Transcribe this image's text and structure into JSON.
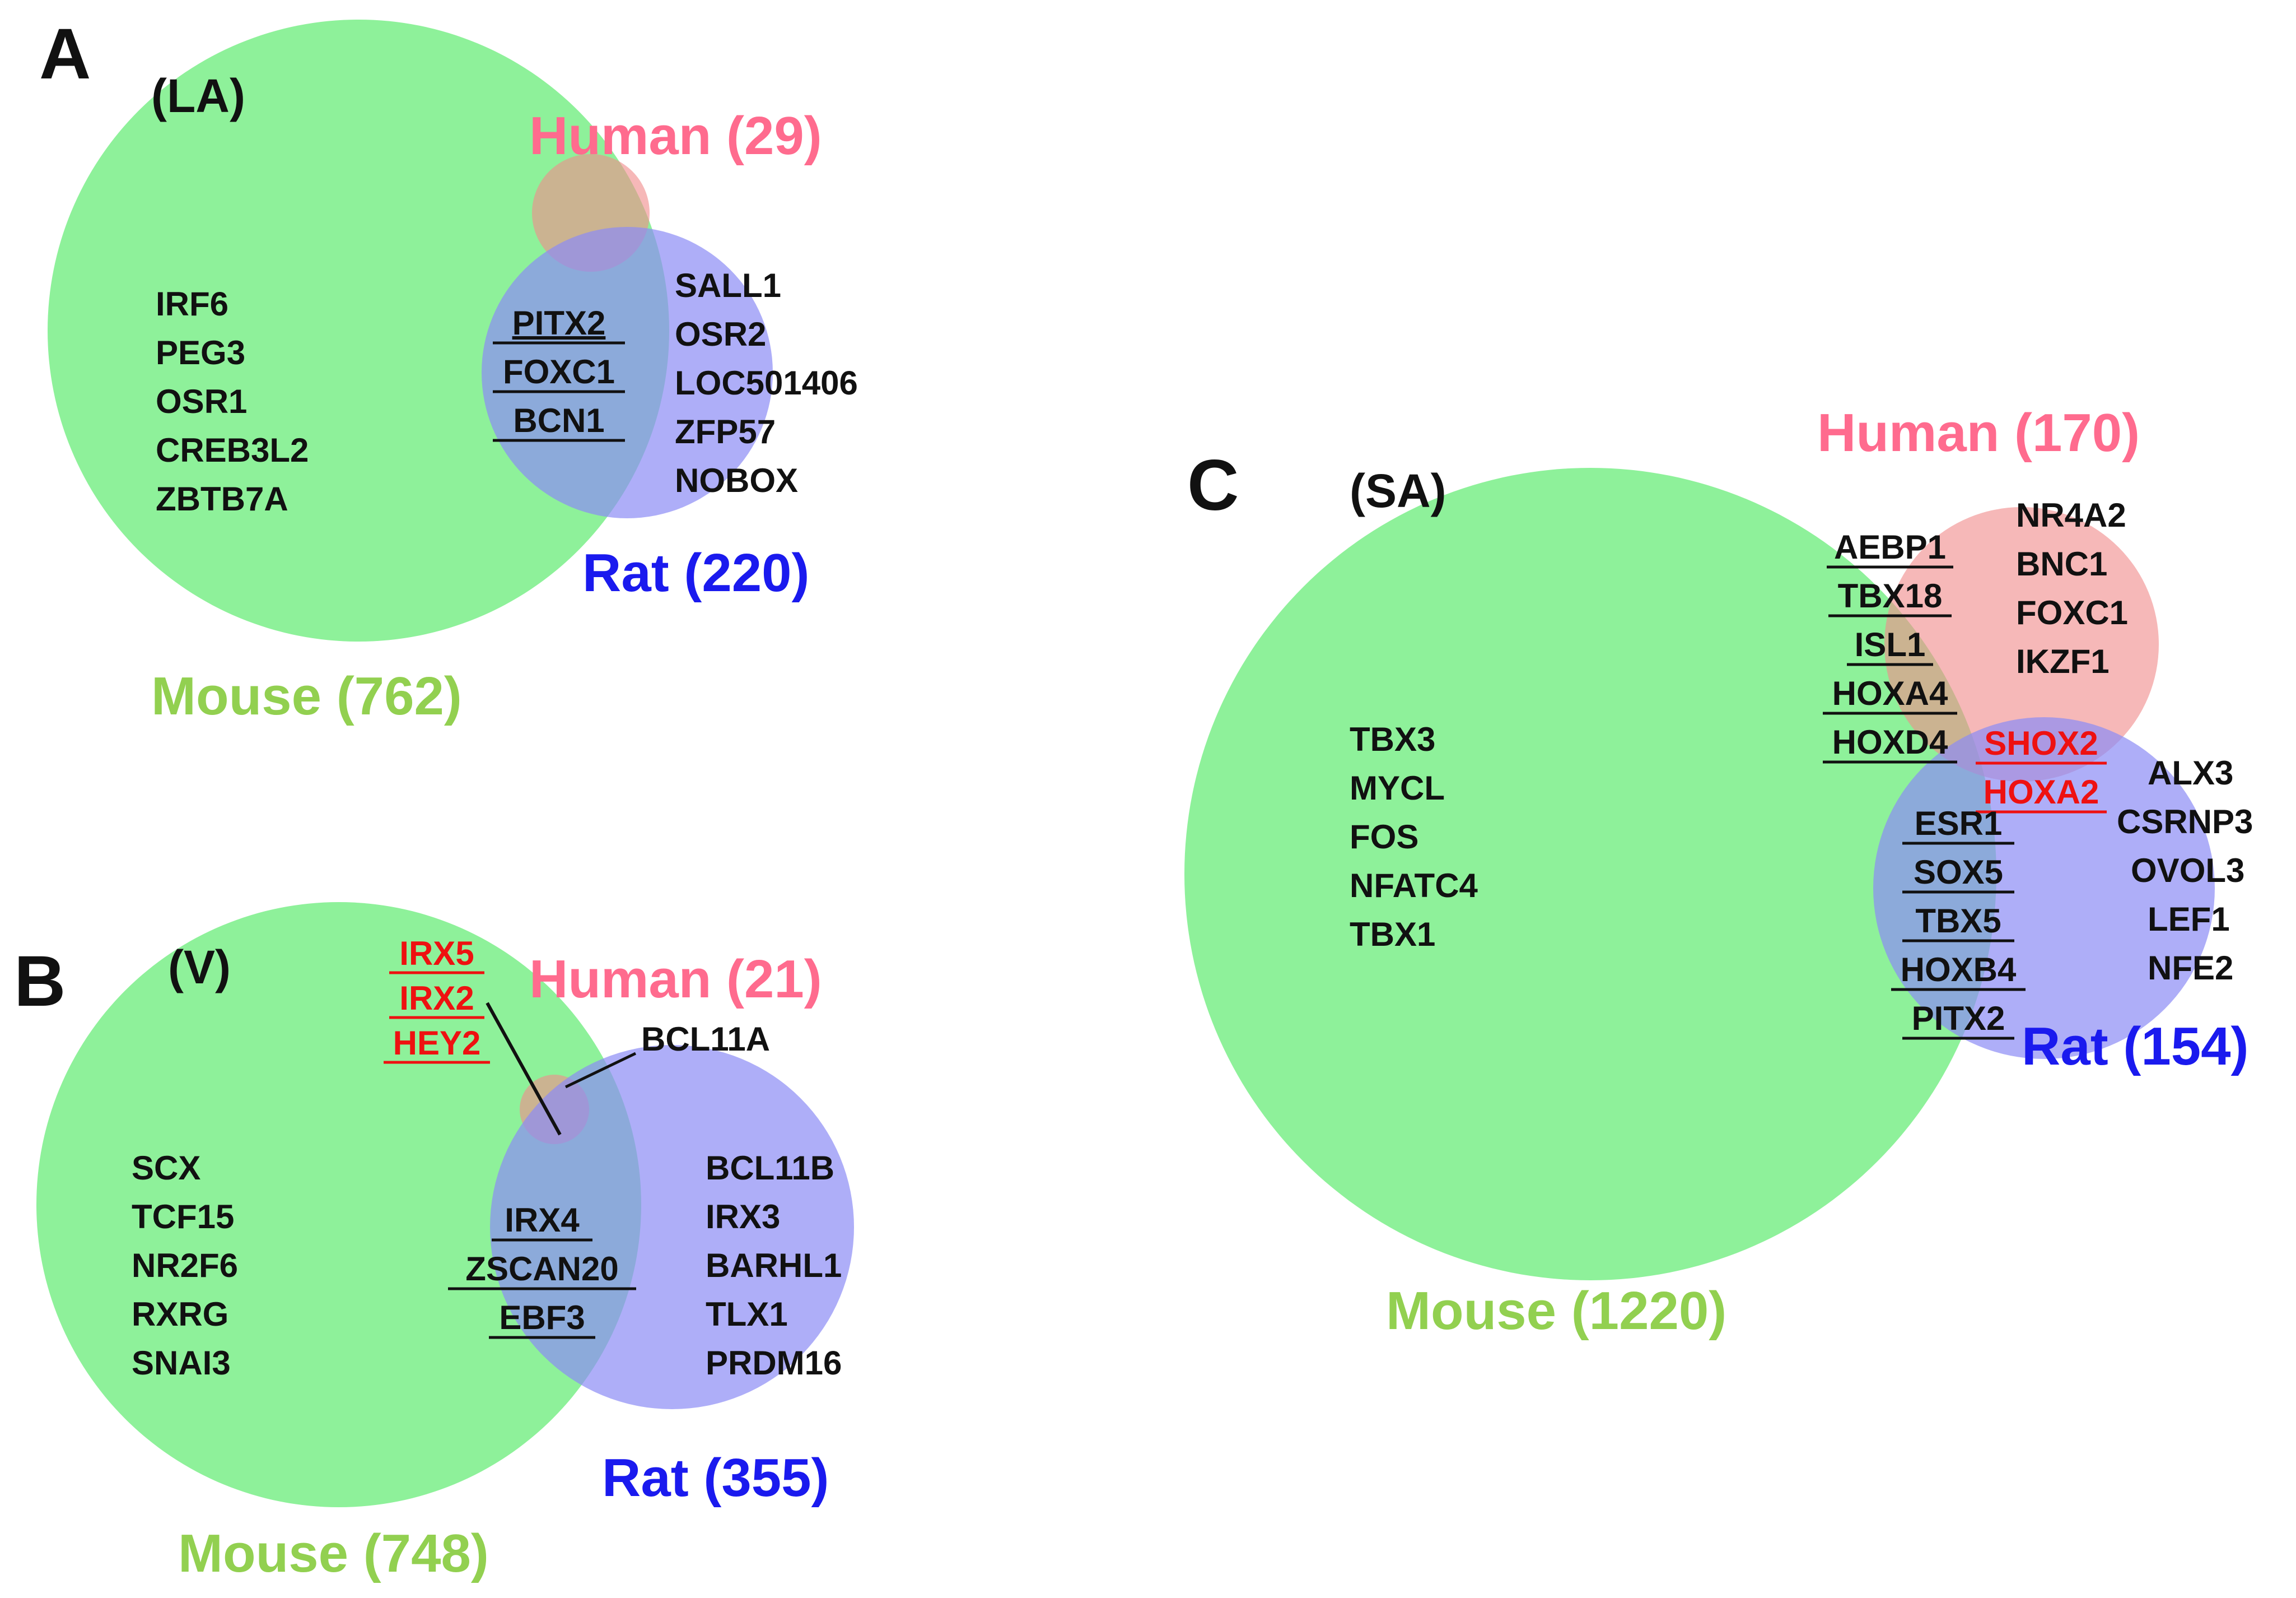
{
  "colors": {
    "mouse": "#8ef19a",
    "human": "#f08c8c",
    "rat": "#8c8cf5",
    "mouse_text": "#92d050",
    "human_text": "#ff6b8e",
    "rat_text": "#1a1aee",
    "highlight_text": "#ee1111"
  },
  "panel_a": {
    "letter": "A",
    "tag": "(LA)",
    "human_label": "Human (29)",
    "rat_label": "Rat (220)",
    "mouse_label": "Mouse (762)",
    "mouse_only": [
      "IRF6",
      "PEG3",
      "OSR1",
      "CREB3L2",
      "ZBTB7A"
    ],
    "rat_only": [
      "SALL1",
      "OSR2",
      "LOC501406",
      "ZFP57",
      "NOBOX"
    ],
    "mouse_rat": [
      "PITX2",
      "FOXC1",
      "BCN1"
    ]
  },
  "panel_b": {
    "letter": "B",
    "tag": "(V)",
    "human_label": "Human (21)",
    "rat_label": "Rat (355)",
    "mouse_label": "Mouse (748)",
    "all_three": [
      "IRX5",
      "IRX2",
      "HEY2"
    ],
    "human_rat": "BCL11A",
    "mouse_only": [
      "SCX",
      "TCF15",
      "NR2F6",
      "RXRG",
      "SNAI3"
    ],
    "rat_only": [
      "BCL11B",
      "IRX3",
      "BARHL1",
      "TLX1",
      "PRDM16"
    ],
    "mouse_rat": [
      "IRX4",
      "ZSCAN20",
      "EBF3"
    ]
  },
  "panel_c": {
    "letter": "C",
    "tag": "(SA)",
    "human_label": "Human (170)",
    "rat_label": "Rat (154)",
    "mouse_label": "Mouse (1220)",
    "mouse_only": [
      "TBX3",
      "MYCL",
      "FOS",
      "NFATC4",
      "TBX1"
    ],
    "human_only": [
      "NR4A2",
      "BNC1",
      "FOXC1",
      "IKZF1"
    ],
    "mouse_human": [
      "AEBP1",
      "TBX18",
      "ISL1",
      "HOXA4",
      "HOXD4"
    ],
    "all_three": [
      "SHOX2",
      "HOXA2"
    ],
    "rat_only": [
      "ALX3",
      "CSRNP3",
      "OVOL3",
      "LEF1",
      "NFE2"
    ],
    "mouse_rat": [
      "ESR1",
      "SOX5",
      "TBX5",
      "HOXB4",
      "PITX2"
    ]
  }
}
